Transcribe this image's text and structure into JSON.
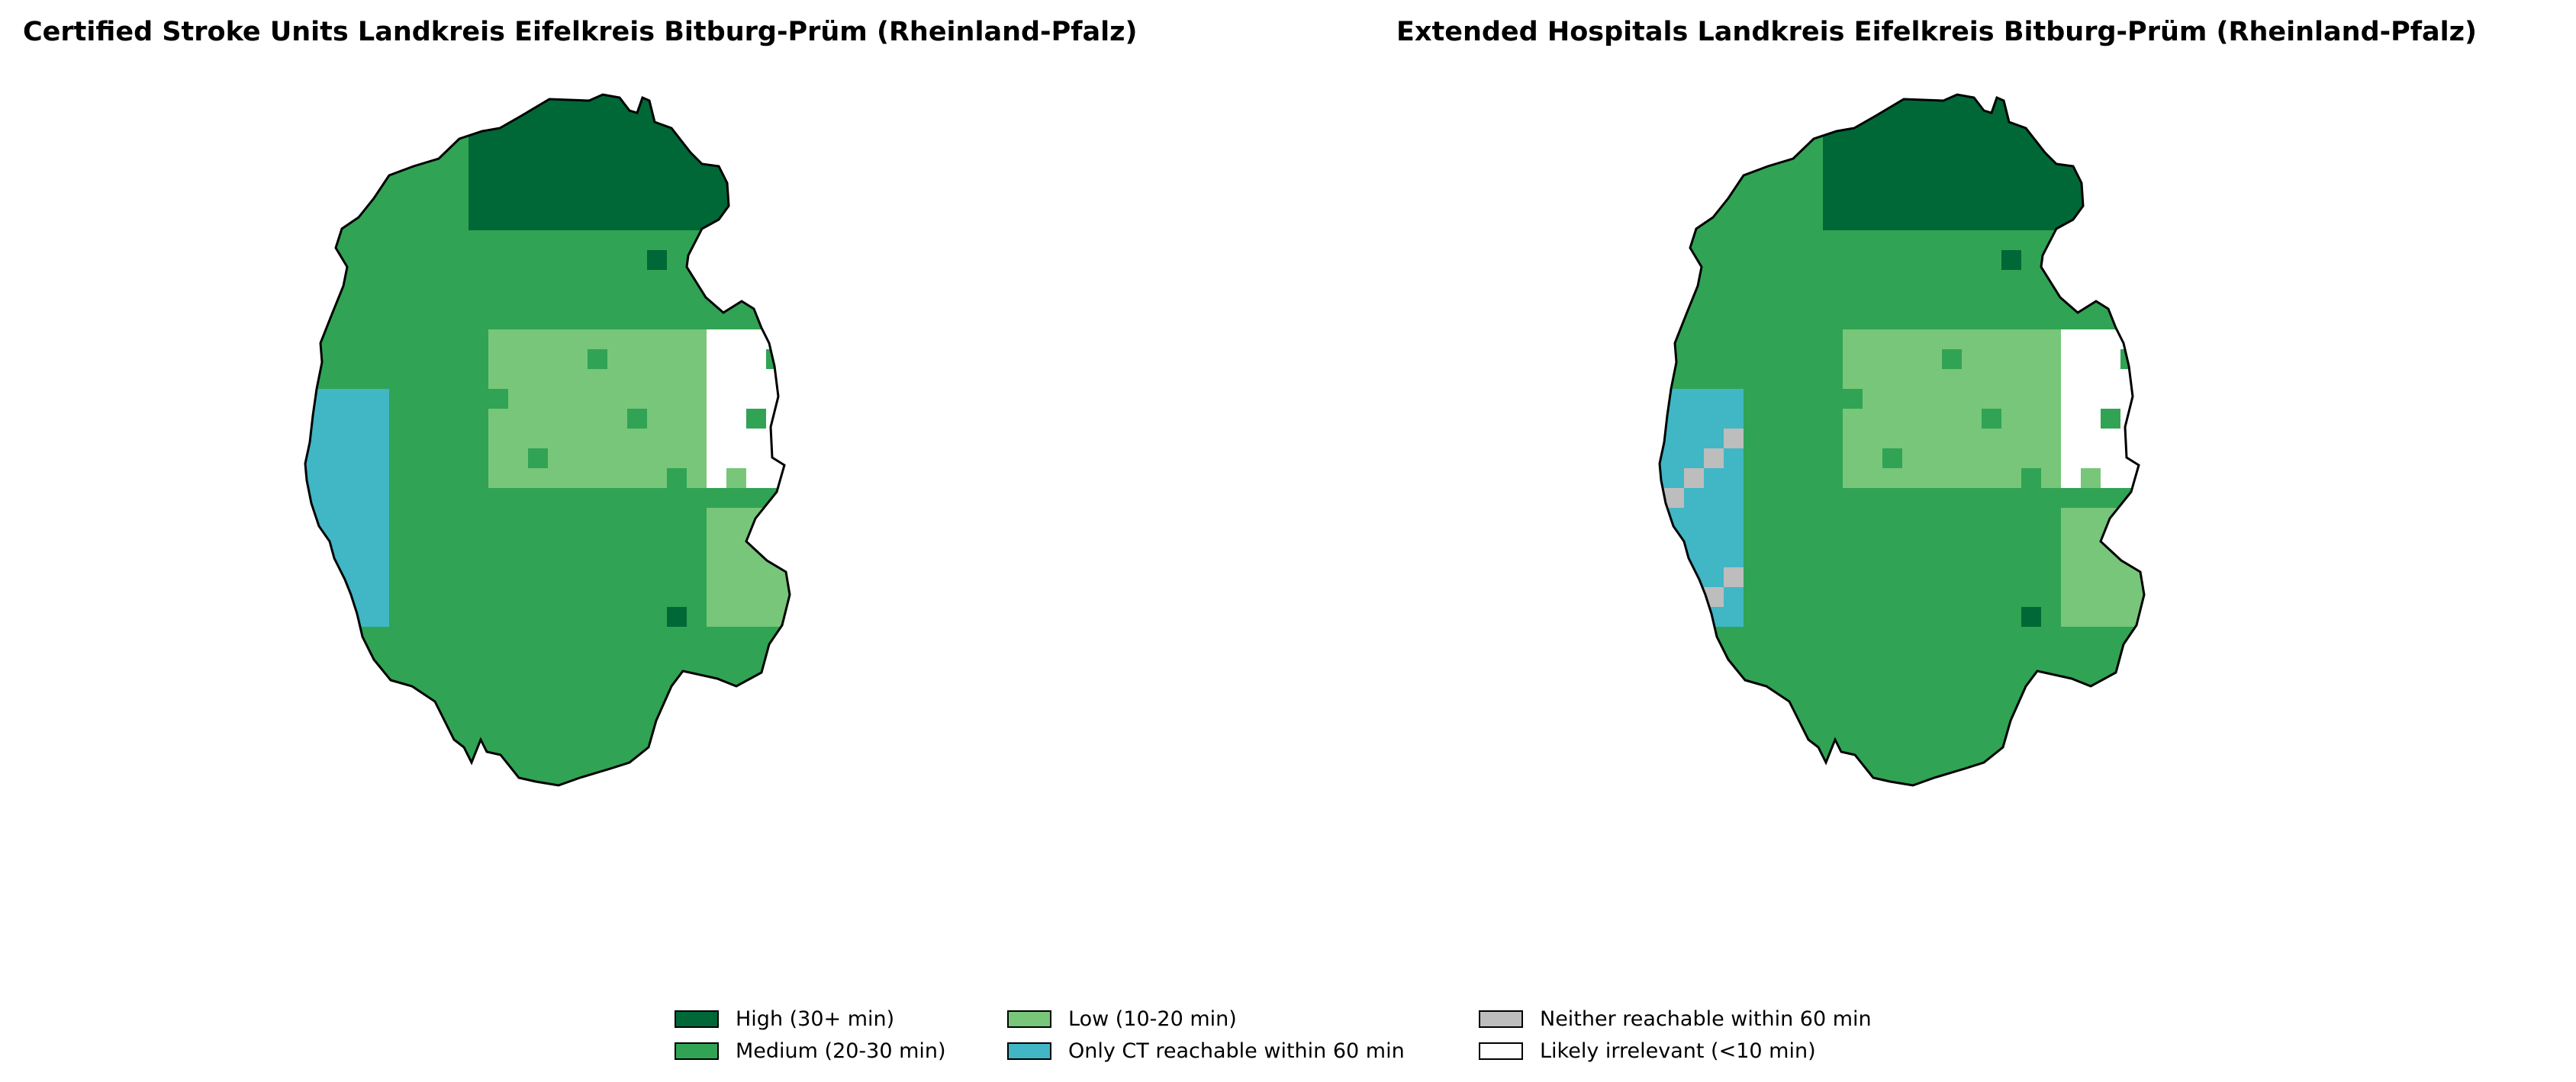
{
  "colors": {
    "high": "#006837",
    "medium": "#31a354",
    "low": "#78c679",
    "ct_only": "#41b6c4",
    "neither": "#bdbdbd",
    "irrelevant": "#ffffff",
    "outline": "#000000"
  },
  "maps": [
    {
      "title": "Certified Stroke Units Landkreis Eifelkreis Bitburg-Prüm (Rheinland-Pfalz)"
    },
    {
      "title": "Extended Hospitals Landkreis Eifelkreis Bitburg-Prüm (Rheinland-Pfalz)"
    }
  ],
  "legend": [
    {
      "label": "High (30+ min)",
      "color_key": "high"
    },
    {
      "label": "Medium (20-30 min)",
      "color_key": "medium"
    },
    {
      "label": "Low (10-20 min)",
      "color_key": "low"
    },
    {
      "label": "Only CT reachable within 60 min",
      "color_key": "ct_only"
    },
    {
      "label": "Neither reachable within 60 min",
      "color_key": "neither"
    },
    {
      "label": "Likely irrelevant (<10 min)",
      "color_key": "irrelevant"
    }
  ]
}
